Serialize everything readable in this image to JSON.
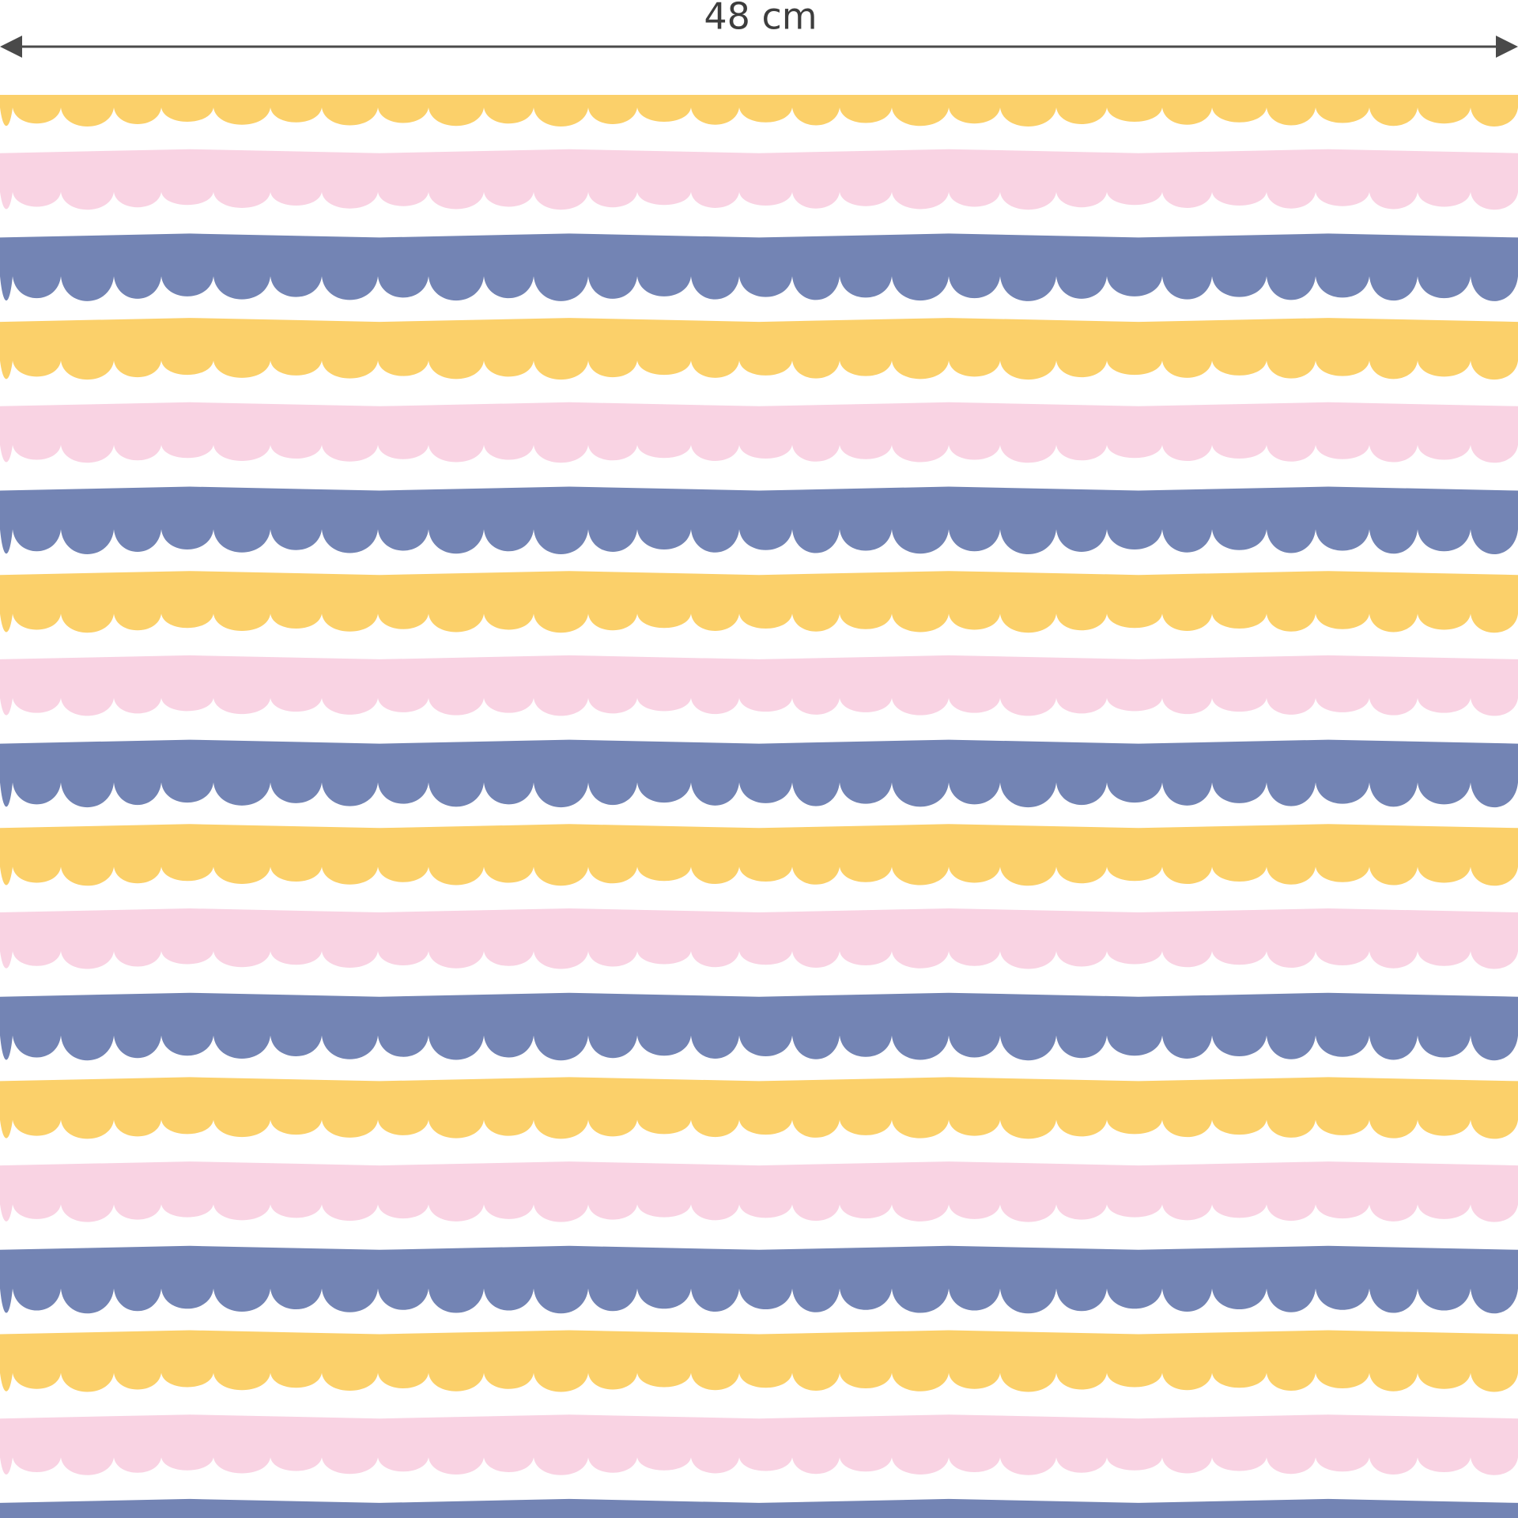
{
  "dimension_label": "48 cm"
}
